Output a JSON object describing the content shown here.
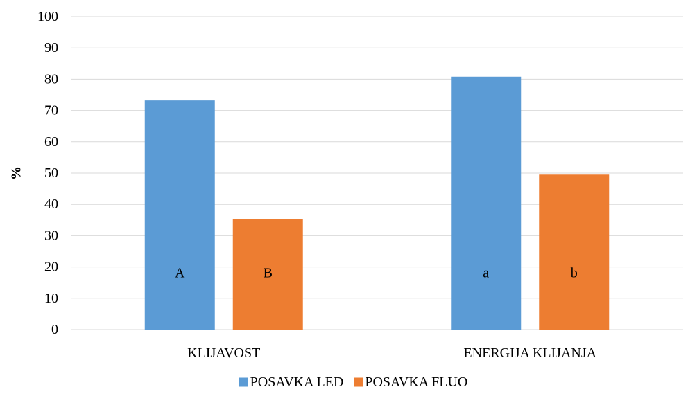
{
  "chart_data": {
    "type": "bar",
    "categories": [
      "KLIJAVOST",
      "ENERGIJA KLIJANJA"
    ],
    "series": [
      {
        "name": "POSAVKA LED",
        "color": "#5b9bd5",
        "values": [
          73.2,
          80.8
        ],
        "bar_letters": [
          "A",
          "a"
        ]
      },
      {
        "name": "POSAVKA FLUO",
        "color": "#ed7d31",
        "values": [
          35.2,
          49.5
        ],
        "bar_letters": [
          "B",
          "b"
        ]
      }
    ],
    "title": "",
    "xlabel": "",
    "ylabel": "%",
    "ylim": [
      0,
      100
    ],
    "yticks": [
      0,
      10,
      20,
      30,
      40,
      50,
      60,
      70,
      80,
      90,
      100
    ],
    "grid": true,
    "legend_position": "bottom",
    "letter_value": 18
  }
}
